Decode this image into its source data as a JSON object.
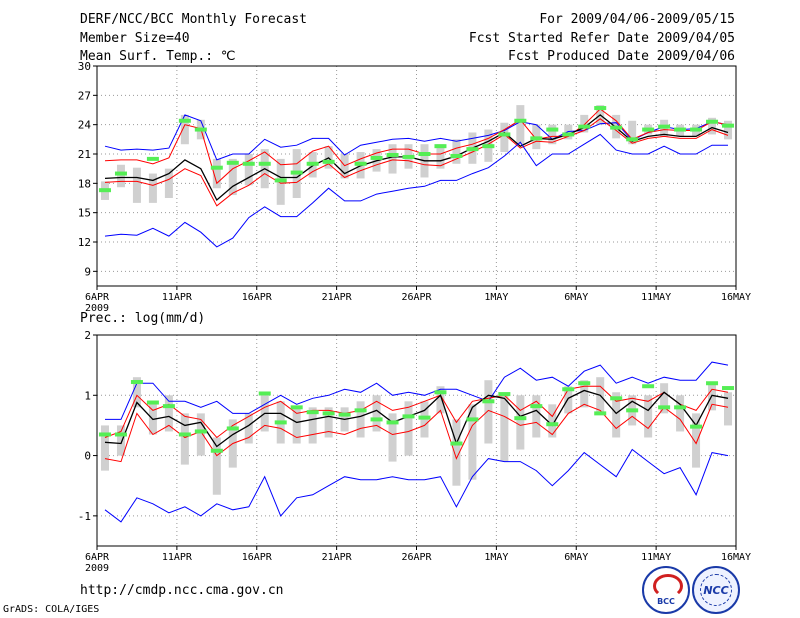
{
  "header": {
    "title": "DERF/NCC/BCC Monthly Forecast",
    "member_size": "Member Size=40",
    "for_period": "For 2009/04/06-2009/05/15",
    "fcst_started": "Fcst Started Refer Date 2009/04/05",
    "fcst_produced": "Fcst Produced Date 2009/04/06"
  },
  "footer": {
    "url": "http://cmdp.ncc.cma.gov.cn",
    "credit": "GrADS: COLA/IGES",
    "logo_bcc": "BCC",
    "logo_ncc": "NCC"
  },
  "colors": {
    "extreme": "#0000ff",
    "spread": "#ff0000",
    "mean": "#000000",
    "box": "#d0d0d0",
    "observed": "#55ee55",
    "grid": "#999999"
  },
  "chart_data": [
    {
      "type": "line",
      "title": "Mean Surf. Temp.: ℃",
      "x_tick_labels": [
        "6APR",
        "11APR",
        "16APR",
        "21APR",
        "26APR",
        "1MAY",
        "6MAY",
        "11MAY",
        "16MAY"
      ],
      "x_year_label": "2009",
      "x_range": [
        0,
        40
      ],
      "ylim": [
        7.5,
        30
      ],
      "y_ticks": [
        9,
        12,
        15,
        18,
        21,
        24,
        27,
        30
      ],
      "series": [
        {
          "name": "max",
          "color": "#0000ff",
          "values": [
            21.8,
            21.4,
            21.5,
            21.4,
            21.6,
            25.0,
            24.4,
            20.4,
            21.0,
            21.0,
            22.5,
            21.7,
            21.9,
            22.6,
            22.6,
            20.9,
            21.9,
            22.2,
            22.5,
            22.6,
            22.3,
            22.6,
            22.3,
            22.6,
            22.9,
            23.4,
            24.3,
            24.0,
            22.5,
            23.3,
            23.4,
            24.1,
            24.2,
            22.4,
            23.2,
            23.8,
            23.5,
            23.6,
            24.3,
            24.0
          ]
        },
        {
          "name": "upper",
          "color": "#ff0000",
          "values": [
            20.3,
            20.4,
            20.4,
            20.0,
            20.6,
            24.0,
            23.6,
            18.0,
            19.5,
            20.3,
            21.2,
            19.9,
            20.0,
            21.3,
            21.8,
            19.8,
            20.5,
            21.1,
            21.5,
            21.5,
            21.0,
            21.0,
            21.6,
            22.0,
            22.6,
            23.5,
            24.5,
            22.5,
            22.8,
            22.8,
            24.0,
            25.6,
            24.4,
            22.5,
            23.2,
            23.5,
            23.4,
            23.4,
            24.3,
            24.0
          ]
        },
        {
          "name": "mean",
          "color": "#000000",
          "values": [
            18.5,
            18.6,
            18.6,
            18.3,
            19.0,
            20.4,
            19.5,
            16.3,
            17.7,
            18.6,
            19.5,
            18.6,
            18.6,
            19.8,
            20.6,
            19.0,
            19.8,
            20.3,
            20.7,
            20.7,
            20.3,
            20.3,
            20.8,
            21.6,
            22.3,
            23.2,
            21.8,
            22.6,
            22.5,
            23.0,
            23.7,
            25.0,
            23.7,
            22.3,
            22.8,
            23.0,
            22.8,
            22.8,
            23.7,
            23.2
          ]
        },
        {
          "name": "lower",
          "color": "#ff0000",
          "values": [
            18.1,
            18.2,
            18.2,
            17.8,
            18.4,
            19.5,
            18.8,
            15.7,
            17.0,
            17.8,
            19.0,
            18.0,
            18.1,
            19.2,
            20.0,
            18.6,
            19.3,
            19.9,
            20.4,
            20.3,
            19.9,
            19.8,
            20.5,
            21.2,
            22.0,
            23.0,
            21.6,
            22.3,
            22.2,
            22.8,
            23.4,
            24.6,
            23.4,
            22.1,
            22.6,
            22.8,
            22.6,
            22.6,
            23.5,
            22.9
          ]
        },
        {
          "name": "min",
          "color": "#0000ff",
          "values": [
            12.6,
            12.8,
            12.7,
            13.4,
            12.6,
            14.0,
            13.0,
            11.5,
            12.4,
            14.5,
            15.6,
            14.6,
            14.6,
            16.0,
            17.5,
            16.2,
            16.2,
            16.9,
            17.2,
            17.5,
            17.7,
            18.3,
            18.3,
            19.0,
            19.6,
            20.8,
            22.2,
            19.8,
            21.0,
            21.0,
            22.0,
            23.0,
            21.4,
            21.0,
            21.0,
            21.8,
            21.0,
            21.0,
            21.9,
            21.9
          ]
        }
      ],
      "boxes": [
        [
          16.3,
          18.2
        ],
        [
          17.6,
          19.9
        ],
        [
          16.0,
          19.6
        ],
        [
          16.0,
          19.0
        ],
        [
          16.5,
          19.5
        ],
        [
          22.0,
          25.0
        ],
        [
          22.5,
          24.5
        ],
        [
          17.5,
          20.5
        ],
        [
          16.8,
          20.5
        ],
        [
          17.8,
          21.0
        ],
        [
          17.5,
          21.5
        ],
        [
          15.8,
          20.5
        ],
        [
          16.5,
          21.5
        ],
        [
          18.6,
          21.2
        ],
        [
          19.5,
          21.8
        ],
        [
          18.5,
          21.0
        ],
        [
          18.5,
          21.2
        ],
        [
          19.2,
          21.5
        ],
        [
          19.0,
          22.0
        ],
        [
          19.5,
          22.0
        ],
        [
          18.6,
          22.0
        ],
        [
          19.5,
          22.0
        ],
        [
          20.0,
          22.5
        ],
        [
          20.0,
          23.2
        ],
        [
          20.2,
          23.5
        ],
        [
          21.2,
          24.2
        ],
        [
          22.0,
          26.0
        ],
        [
          21.5,
          24.0
        ],
        [
          22.0,
          24.0
        ],
        [
          22.5,
          24.0
        ],
        [
          23.2,
          25.0
        ],
        [
          24.0,
          26.0
        ],
        [
          22.6,
          25.0
        ],
        [
          22.0,
          24.4
        ],
        [
          23.0,
          24.0
        ],
        [
          22.8,
          24.5
        ],
        [
          22.8,
          24.0
        ],
        [
          22.8,
          24.0
        ],
        [
          23.0,
          24.7
        ],
        [
          22.5,
          24.4
        ]
      ],
      "observed": [
        17.3,
        19.0,
        null,
        20.5,
        null,
        24.4,
        23.5,
        19.6,
        20.1,
        20.0,
        20.0,
        18.3,
        19.1,
        20.0,
        20.2,
        null,
        20.0,
        20.6,
        20.9,
        20.7,
        21.0,
        21.8,
        20.8,
        21.5,
        21.8,
        23.0,
        24.4,
        22.6,
        23.5,
        23.0,
        23.8,
        25.7,
        23.7,
        22.5,
        23.5,
        23.8,
        23.5,
        23.5,
        24.3,
        23.9
      ]
    },
    {
      "type": "line",
      "title": "Prec.: log(mm/d)",
      "x_tick_labels": [
        "6APR",
        "11APR",
        "16APR",
        "21APR",
        "26APR",
        "1MAY",
        "6MAY",
        "11MAY",
        "16MAY"
      ],
      "x_year_label": "2009",
      "x_range": [
        0,
        40
      ],
      "ylim": [
        -1.5,
        2
      ],
      "y_ticks": [
        -1,
        0,
        1,
        2
      ],
      "series": [
        {
          "name": "max",
          "color": "#0000ff",
          "values": [
            0.6,
            0.6,
            1.2,
            1.2,
            0.9,
            0.9,
            0.8,
            0.9,
            0.7,
            0.7,
            0.85,
            1.0,
            0.85,
            0.95,
            1.0,
            1.1,
            1.05,
            1.2,
            1.0,
            1.05,
            1.0,
            1.1,
            1.1,
            1.0,
            0.9,
            1.3,
            1.45,
            1.25,
            1.3,
            1.15,
            1.4,
            1.5,
            1.2,
            1.3,
            1.2,
            1.3,
            1.25,
            1.25,
            1.55,
            1.5
          ]
        },
        {
          "name": "upper",
          "color": "#ff0000",
          "values": [
            0.3,
            0.4,
            1.0,
            0.75,
            0.85,
            0.65,
            0.6,
            0.3,
            0.5,
            0.65,
            0.8,
            0.9,
            0.7,
            0.75,
            0.75,
            0.7,
            0.75,
            0.9,
            0.75,
            0.8,
            0.9,
            1.0,
            0.55,
            0.9,
            0.95,
            1.0,
            0.75,
            0.9,
            0.65,
            1.1,
            1.15,
            1.15,
            0.9,
            0.95,
            0.9,
            1.05,
            0.85,
            0.75,
            1.1,
            1.05
          ]
        },
        {
          "name": "mean",
          "color": "#000000",
          "values": [
            0.22,
            0.2,
            0.88,
            0.6,
            0.65,
            0.5,
            0.55,
            0.15,
            0.35,
            0.5,
            0.7,
            0.7,
            0.55,
            0.6,
            0.65,
            0.6,
            0.65,
            0.75,
            0.55,
            0.65,
            0.75,
            1.0,
            0.2,
            0.8,
            1.0,
            0.95,
            0.65,
            0.75,
            0.5,
            0.95,
            1.08,
            1.0,
            0.7,
            0.9,
            0.75,
            1.05,
            0.85,
            0.5,
            1.0,
            0.95
          ]
        },
        {
          "name": "lower",
          "color": "#ff0000",
          "values": [
            -0.05,
            -0.1,
            0.7,
            0.35,
            0.5,
            0.3,
            0.4,
            0.0,
            0.2,
            0.3,
            0.5,
            0.45,
            0.3,
            0.35,
            0.4,
            0.35,
            0.45,
            0.5,
            0.35,
            0.4,
            0.5,
            0.75,
            -0.05,
            0.5,
            0.75,
            0.65,
            0.5,
            0.55,
            0.35,
            0.7,
            0.85,
            0.75,
            0.45,
            0.65,
            0.45,
            0.8,
            0.6,
            0.2,
            0.85,
            0.8
          ]
        },
        {
          "name": "min",
          "color": "#0000ff",
          "values": [
            -0.9,
            -1.1,
            -0.7,
            -0.8,
            -0.95,
            -0.85,
            -1.0,
            -0.8,
            -0.9,
            -0.85,
            -0.35,
            -1.0,
            -0.7,
            -0.65,
            -0.5,
            -0.35,
            -0.4,
            -0.4,
            -0.35,
            -0.4,
            -0.4,
            -0.35,
            -0.85,
            -0.35,
            -0.05,
            -0.1,
            -0.1,
            -0.25,
            -0.5,
            -0.25,
            0.05,
            -0.15,
            -0.35,
            0.1,
            -0.1,
            -0.3,
            -0.2,
            -0.65,
            0.05,
            0.0
          ]
        },
        {
          "name": "mean_shadow",
          "color": "#000000",
          "values": []
        }
      ],
      "boxes": [
        [
          -0.25,
          0.5
        ],
        [
          0.0,
          0.5
        ],
        [
          0.8,
          1.3
        ],
        [
          0.35,
          0.9
        ],
        [
          0.4,
          1.0
        ],
        [
          -0.15,
          0.7
        ],
        [
          0.0,
          0.7
        ],
        [
          -0.65,
          0.3
        ],
        [
          -0.2,
          0.6
        ],
        [
          0.2,
          0.7
        ],
        [
          0.4,
          1.0
        ],
        [
          0.2,
          0.9
        ],
        [
          0.2,
          0.8
        ],
        [
          0.2,
          0.8
        ],
        [
          0.3,
          0.8
        ],
        [
          0.4,
          0.8
        ],
        [
          0.3,
          0.9
        ],
        [
          0.4,
          1.0
        ],
        [
          -0.1,
          0.7
        ],
        [
          0.0,
          0.9
        ],
        [
          0.3,
          0.9
        ],
        [
          0.7,
          1.15
        ],
        [
          -0.5,
          0.6
        ],
        [
          -0.4,
          0.85
        ],
        [
          0.2,
          1.25
        ],
        [
          -0.1,
          1.0
        ],
        [
          0.1,
          1.0
        ],
        [
          0.3,
          1.0
        ],
        [
          0.3,
          0.85
        ],
        [
          0.7,
          1.15
        ],
        [
          0.8,
          1.25
        ],
        [
          0.7,
          1.3
        ],
        [
          0.3,
          1.05
        ],
        [
          0.5,
          1.0
        ],
        [
          0.3,
          1.0
        ],
        [
          0.7,
          1.2
        ],
        [
          0.4,
          1.0
        ],
        [
          -0.2,
          0.7
        ],
        [
          0.75,
          1.2
        ],
        [
          0.5,
          1.05
        ]
      ],
      "observed": [
        0.35,
        0.35,
        1.22,
        0.88,
        0.82,
        0.35,
        0.4,
        0.08,
        0.45,
        null,
        1.03,
        0.55,
        0.8,
        0.72,
        0.7,
        0.68,
        0.75,
        0.6,
        0.55,
        0.65,
        0.63,
        1.05,
        0.2,
        0.6,
        0.9,
        1.02,
        0.62,
        0.82,
        0.52,
        1.1,
        1.2,
        0.7,
        0.95,
        0.75,
        1.15,
        0.8,
        0.8,
        0.48,
        1.2,
        1.12
      ]
    }
  ]
}
